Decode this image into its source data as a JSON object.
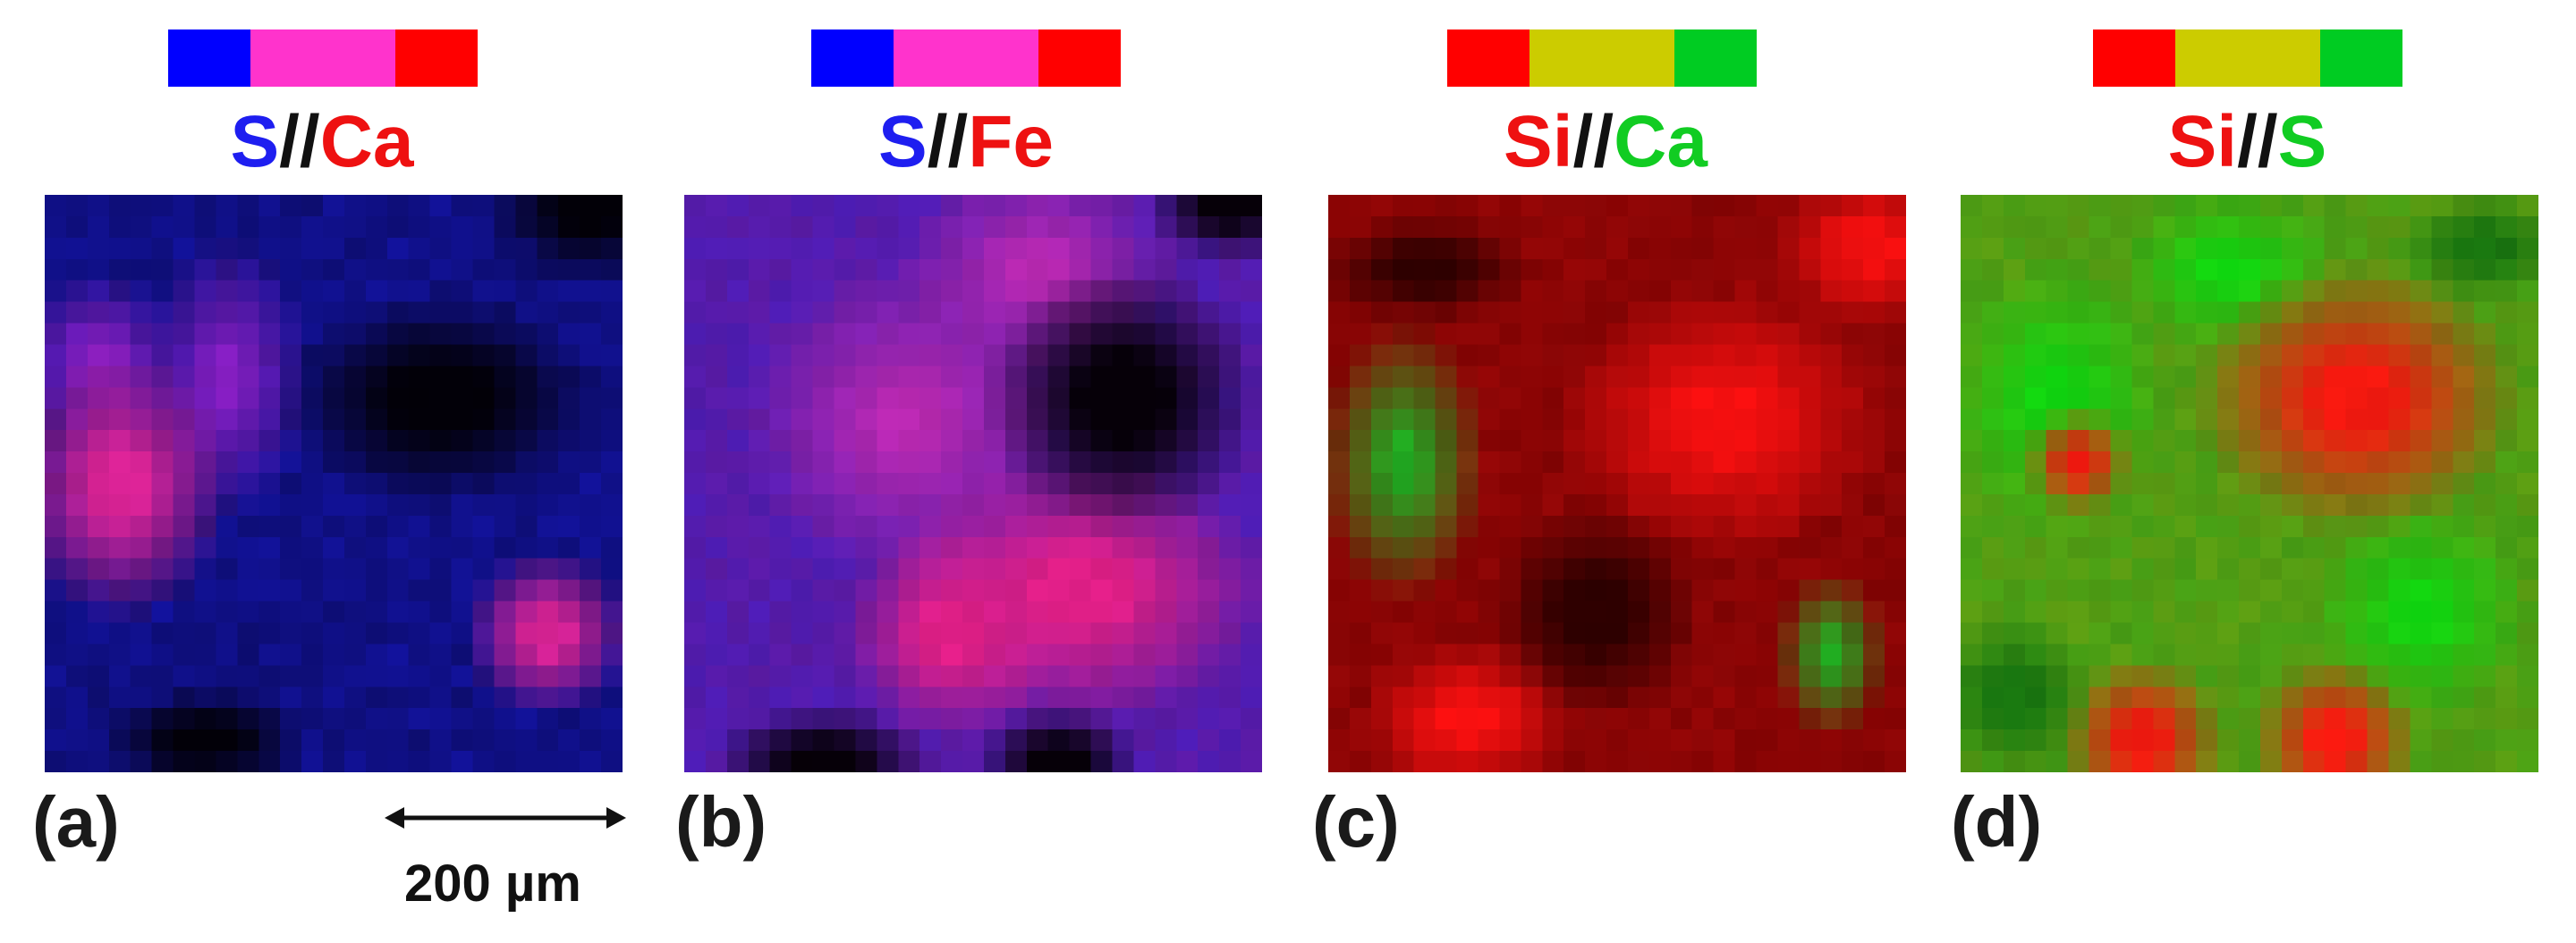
{
  "panels": [
    {
      "letter": "(a)",
      "title": {
        "el1": "S",
        "sep": "//",
        "el2": "Ca"
      },
      "title_colors": {
        "el1": "#1e1ef0",
        "sep": "#111111",
        "el2": "#ee1111"
      },
      "scale_colors": [
        "#0000ff",
        "#ff33cc",
        "#ff0000"
      ],
      "palette": {
        "bg": "#0a0a5e",
        "blob_hi": "#e0249a",
        "blob_mid": "#8a1fc8",
        "dark": "#020008",
        "base": "#1414a8"
      }
    },
    {
      "letter": "(b)",
      "title": {
        "el1": "S",
        "sep": "//",
        "el2": "Fe"
      },
      "title_colors": {
        "el1": "#1e1ef0",
        "sep": "#111111",
        "el2": "#ee1111"
      },
      "scale_colors": [
        "#0000ff",
        "#ff33cc",
        "#ff0000"
      ],
      "palette": {
        "bg": "#6a1aa0",
        "blob_hi": "#e8208c",
        "blob_mid": "#c02ab8",
        "dark": "#060008",
        "base": "#4a1ec0"
      }
    },
    {
      "letter": "(c)",
      "title": {
        "el1": "Si",
        "sep": "//",
        "el2": "Ca"
      },
      "title_colors": {
        "el1": "#ee1111",
        "sep": "#111111",
        "el2": "#11cc22"
      },
      "scale_colors": [
        "#ff0000",
        "#cccc00",
        "#00cc22"
      ],
      "palette": {
        "bg": "#780000",
        "blob_hi": "#ff1010",
        "blob_mid": "#22b022",
        "dark": "#300000",
        "base": "#a00808"
      }
    },
    {
      "letter": "(d)",
      "title": {
        "el1": "Si",
        "sep": "//",
        "el2": "S"
      },
      "title_colors": {
        "el1": "#ee1111",
        "sep": "#111111",
        "el2": "#11cc22"
      },
      "scale_colors": [
        "#ff0000",
        "#cccc00",
        "#00cc22"
      ],
      "palette": {
        "bg": "#3aa818",
        "blob_hi": "#ff1a10",
        "blob_mid": "#10e010",
        "dark": "#1a7a10",
        "base": "#66a012"
      }
    }
  ],
  "scale_label": "200 µm"
}
